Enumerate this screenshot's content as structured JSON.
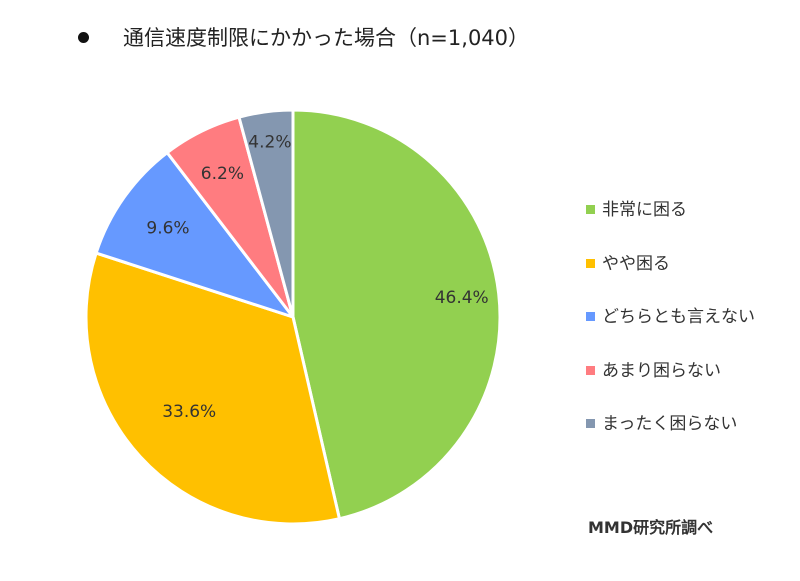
{
  "title": "通信速度制限にかかった場合（n=1,040）",
  "source": "MMD研究所調べ",
  "chart_data": {
    "type": "pie",
    "title": "通信速度制限にかかった場合（n=1,040）",
    "categories": [
      "非常に困る",
      "やや困る",
      "どちらとも言えない",
      "あまり困らない",
      "まったく困らない"
    ],
    "values": [
      46.4,
      33.6,
      9.6,
      6.2,
      4.2
    ],
    "labels": [
      "46.4%",
      "33.6%",
      "9.6%",
      "6.2%",
      "4.2%"
    ],
    "colors": [
      "#92d050",
      "#ffc000",
      "#6699ff",
      "#ff7c80",
      "#8497b0"
    ],
    "start_angle": "12 o'clock",
    "direction": "clockwise",
    "legend": "right"
  }
}
